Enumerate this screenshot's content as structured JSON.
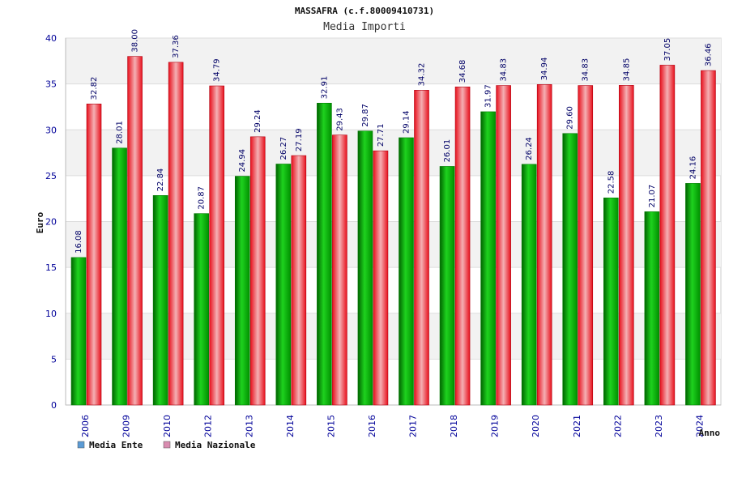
{
  "chart_data": {
    "type": "bar",
    "title": "MASSAFRA (c.f.80009410731)",
    "subtitle": "Media Importi",
    "xlabel": "Anno",
    "ylabel": "Euro",
    "ylim": [
      0,
      40
    ],
    "yticks": [
      0,
      5,
      10,
      15,
      20,
      25,
      30,
      35,
      40
    ],
    "grid": true,
    "legend_position": "bottom-left",
    "categories": [
      "2006",
      "2009",
      "2010",
      "2012",
      "2013",
      "2014",
      "2015",
      "2016",
      "2017",
      "2018",
      "2019",
      "2020",
      "2021",
      "2022",
      "2023",
      "2024"
    ],
    "series": [
      {
        "name": "Media Ente",
        "color": "#00b400",
        "legend_color": "#5b9bd5",
        "values": [
          16.08,
          28.01,
          22.84,
          20.87,
          24.94,
          26.27,
          32.91,
          29.87,
          29.14,
          26.01,
          31.97,
          26.24,
          29.6,
          22.58,
          21.07,
          24.16
        ],
        "labels": [
          "16.08",
          "28.01",
          "22.84",
          "20.87",
          "24.94",
          "26.27",
          "32.91",
          "29.87",
          "29.14",
          "26.01",
          "31.97",
          "26.24",
          "29.60",
          "22.58",
          "21.07",
          "24.16"
        ]
      },
      {
        "name": "Media Nazionale",
        "color": "#e8101c",
        "legend_color": "#d98cb0",
        "values": [
          32.82,
          38.0,
          37.36,
          34.79,
          29.24,
          27.19,
          29.43,
          27.71,
          34.32,
          34.68,
          34.83,
          34.94,
          34.83,
          34.85,
          37.05,
          36.46
        ],
        "labels": [
          "32.82",
          "38.00",
          "37.36",
          "34.79",
          "29.24",
          "27.19",
          "29.43",
          "27.71",
          "34.32",
          "34.68",
          "34.83",
          "34.94",
          "34.83",
          "34.85",
          "37.05",
          "36.46"
        ]
      }
    ]
  }
}
